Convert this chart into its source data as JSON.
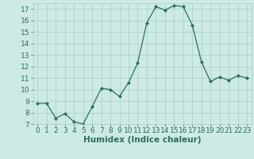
{
  "x": [
    0,
    1,
    2,
    3,
    4,
    5,
    6,
    7,
    8,
    9,
    10,
    11,
    12,
    13,
    14,
    15,
    16,
    17,
    18,
    19,
    20,
    21,
    22,
    23
  ],
  "y": [
    8.8,
    8.8,
    7.5,
    7.9,
    7.2,
    7.0,
    8.5,
    10.1,
    10.0,
    9.4,
    10.6,
    12.3,
    15.8,
    17.2,
    16.9,
    17.3,
    17.2,
    15.6,
    12.4,
    10.7,
    11.1,
    10.8,
    11.2,
    11.0
  ],
  "xlabel": "Humidex (Indice chaleur)",
  "ylim": [
    7,
    17.5
  ],
  "xlim": [
    -0.5,
    23.5
  ],
  "yticks": [
    7,
    8,
    9,
    10,
    11,
    12,
    13,
    14,
    15,
    16,
    17
  ],
  "xticks": [
    0,
    1,
    2,
    3,
    4,
    5,
    6,
    7,
    8,
    9,
    10,
    11,
    12,
    13,
    14,
    15,
    16,
    17,
    18,
    19,
    20,
    21,
    22,
    23
  ],
  "line_color": "#2e6e5e",
  "marker_color": "#2e6e5e",
  "bg_color": "#cdeae4",
  "grid_color": "#aaccc6",
  "label_color": "#2e6e5e",
  "tick_color": "#2e6e5e",
  "font_size_label": 7.5,
  "font_size_tick": 6.5
}
